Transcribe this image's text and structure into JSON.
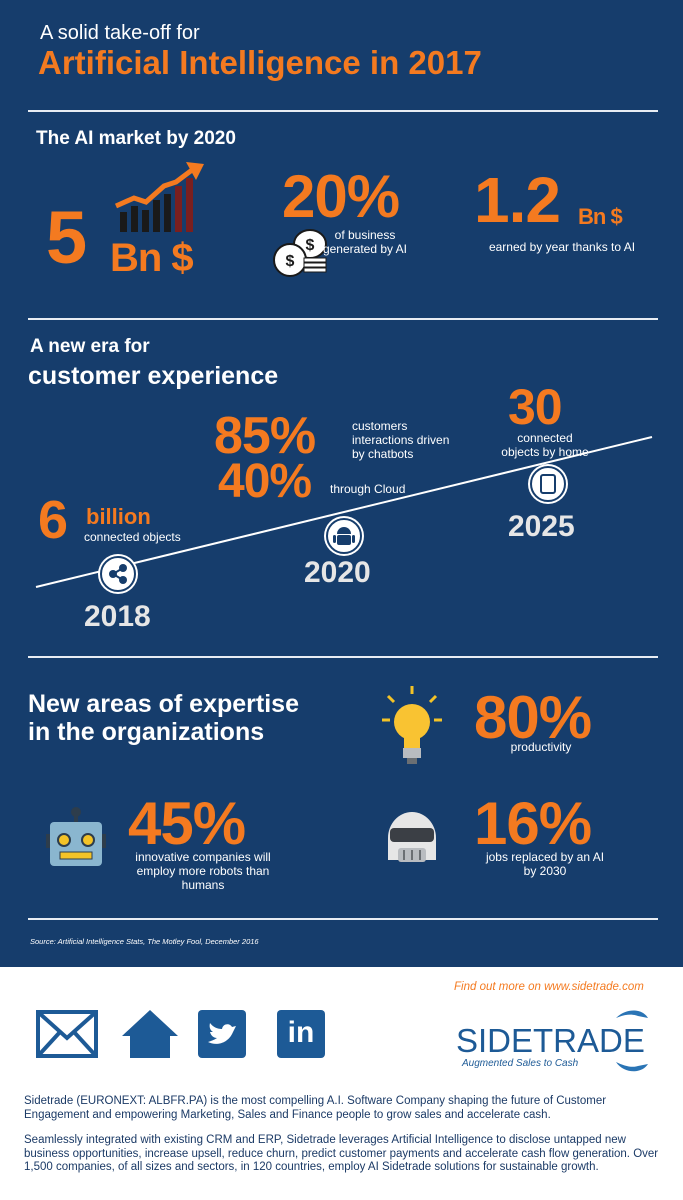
{
  "header": {
    "subtitle": "A solid take-off for",
    "title": "Artificial Intelligence in 2017"
  },
  "market": {
    "heading": "The AI market by 2020",
    "stat1_value": "5",
    "stat1_unit": "Bn $",
    "stat2_value": "20%",
    "stat2_label_line1": "of business",
    "stat2_label_line2": "generated by AI",
    "stat3_value": "1.2",
    "stat3_unit": "Bn $",
    "stat3_label": "earned by year thanks to AI"
  },
  "customer": {
    "heading_line1": "A new era for",
    "heading_line2": "customer experience",
    "stat_6_value": "6",
    "stat_6_unit": "billion",
    "stat_6_label": "connected objects",
    "stat_85_value": "85%",
    "stat_85_label_line1": "customers",
    "stat_85_label_line2": "interactions driven",
    "stat_85_label_line3": "by chatbots",
    "stat_40_value": "40%",
    "stat_40_label": "through Cloud",
    "stat_30_value": "30",
    "stat_30_label_line1": "connected",
    "stat_30_label_line2": "objects by home",
    "year_2018": "2018",
    "year_2020": "2020",
    "year_2025": "2025"
  },
  "expertise": {
    "heading_line1": "New areas of expertise",
    "heading_line2": "in the organizations",
    "stat_80_value": "80%",
    "stat_80_label": "productivity",
    "stat_45_value": "45%",
    "stat_45_label_line1": "innovative companies will",
    "stat_45_label_line2": "employ more robots than",
    "stat_45_label_line3": "humans",
    "stat_16_value": "16%",
    "stat_16_label_line1": "jobs replaced by an AI",
    "stat_16_label_line2": "by 2030"
  },
  "source": "Source: Artificial Intelligence Stats, The Motley Fool, December 2016",
  "footer": {
    "find_out": "Find out more on www.sidetrade.com",
    "logo_text": "SIDETRADE",
    "logo_tagline": "Augmented Sales to Cash",
    "linkedin_text": "in",
    "para1": "Sidetrade (EURONEXT: ALBFR.PA) is the most compelling A.I. Software Company shaping the future of Customer Engagement and empowering Marketing, Sales and Finance people to grow sales and accelerate cash.",
    "para2": "Seamlessly integrated with existing CRM and ERP, Sidetrade leverages Artificial Intelligence to disclose untapped new business opportunities, increase upsell, reduce churn, predict customer payments and accelerate cash flow generation. Over 1,500 companies, of all sizes and sectors, in 120 countries, employ AI Sidetrade solutions for sustainable growth."
  },
  "colors": {
    "background": "#163d6c",
    "accent": "#f47a20",
    "text_light": "#ffffff",
    "footer_text": "#1b3a66"
  },
  "icons": [
    "trend-chart-icon",
    "coins-icon",
    "share-icon",
    "android-icon",
    "tablet-icon",
    "lightbulb-icon",
    "robot-icon",
    "helmet-icon",
    "mail-icon",
    "home-icon",
    "twitter-icon",
    "linkedin-icon",
    "sidetrade-logo-icon"
  ]
}
